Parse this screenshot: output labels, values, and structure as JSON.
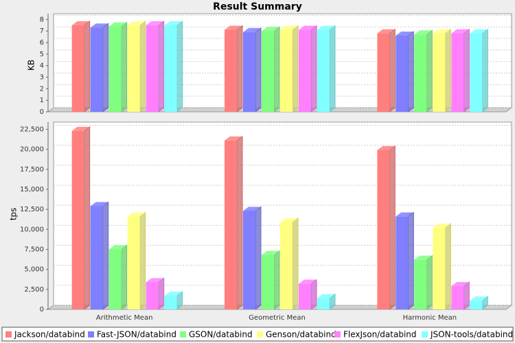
{
  "chart_data": [
    {
      "type": "bar",
      "title": "Result Summary",
      "y_label": "KB",
      "ylim": [
        0,
        8.5
      ],
      "yticks": [
        0,
        1,
        2,
        3,
        4,
        5,
        6,
        7,
        8
      ],
      "grid": true,
      "legend": "bottom",
      "series": [
        {
          "name": "Jackson/databind",
          "color": "#ff7f7f",
          "values": [
            7.5,
            7.1,
            6.8
          ]
        },
        {
          "name": "Fast-JSON/databind",
          "color": "#7f7fff",
          "values": [
            7.3,
            6.9,
            6.6
          ]
        },
        {
          "name": "GSON/databind",
          "color": "#7fff7f",
          "values": [
            7.4,
            7.0,
            6.7
          ]
        },
        {
          "name": "Genson/databind",
          "color": "#ffff7f",
          "values": [
            7.5,
            7.1,
            6.8
          ]
        },
        {
          "name": "FlexJson/databind",
          "color": "#ff7fff",
          "values": [
            7.5,
            7.1,
            6.8
          ]
        },
        {
          "name": "JSON-tools/databind",
          "color": "#7fffff",
          "values": [
            7.5,
            7.1,
            6.8
          ]
        }
      ]
    },
    {
      "type": "bar",
      "y_label": "tps",
      "categories": [
        "Arithmetic Mean",
        "Geometric Mean",
        "Harmonic Mean"
      ],
      "ylim": [
        0,
        23400
      ],
      "yticks": [
        0,
        {
          "value": 2500,
          "label": "2,500"
        },
        {
          "value": 5000,
          "label": "5,000"
        },
        {
          "value": 7500,
          "label": "7,500"
        },
        {
          "value": 10000,
          "label": "10,000"
        },
        {
          "value": 12500,
          "label": "12,500"
        },
        {
          "value": 15000,
          "label": "15,000"
        },
        {
          "value": 17500,
          "label": "17,500"
        },
        {
          "value": 20000,
          "label": "20,000"
        },
        {
          "value": 22500,
          "label": "22,500"
        }
      ],
      "grid": true,
      "series": [
        {
          "color": "#ff7f7f",
          "values": [
            22300,
            21100,
            19900
          ]
        },
        {
          "color": "#7f7fff",
          "values": [
            12900,
            12300,
            11600
          ]
        },
        {
          "color": "#7fff7f",
          "values": [
            7500,
            6800,
            6200
          ]
        },
        {
          "color": "#ffff7f",
          "values": [
            11600,
            10900,
            10200
          ]
        },
        {
          "color": "#ff7fff",
          "values": [
            3400,
            3200,
            2900
          ]
        },
        {
          "color": "#7fffff",
          "values": [
            1700,
            1400,
            1100
          ]
        }
      ]
    }
  ]
}
